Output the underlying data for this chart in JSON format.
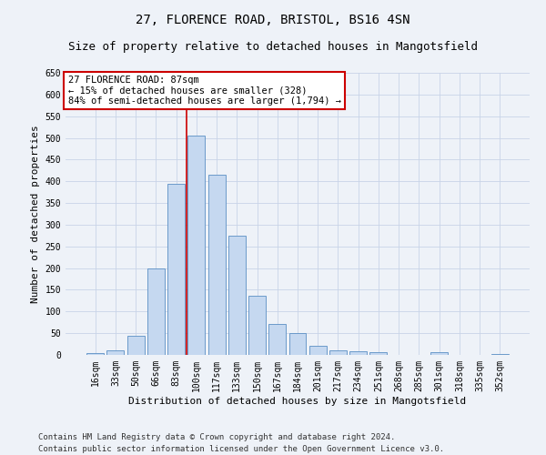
{
  "title_line1": "27, FLORENCE ROAD, BRISTOL, BS16 4SN",
  "title_line2": "Size of property relative to detached houses in Mangotsfield",
  "xlabel": "Distribution of detached houses by size in Mangotsfield",
  "ylabel": "Number of detached properties",
  "categories": [
    "16sqm",
    "33sqm",
    "50sqm",
    "66sqm",
    "83sqm",
    "100sqm",
    "117sqm",
    "133sqm",
    "150sqm",
    "167sqm",
    "184sqm",
    "201sqm",
    "217sqm",
    "234sqm",
    "251sqm",
    "268sqm",
    "285sqm",
    "301sqm",
    "318sqm",
    "335sqm",
    "352sqm"
  ],
  "bar_heights": [
    5,
    10,
    45,
    200,
    395,
    505,
    415,
    275,
    137,
    72,
    50,
    20,
    10,
    8,
    6,
    0,
    0,
    7,
    0,
    0,
    2
  ],
  "bar_color": "#c5d8f0",
  "bar_edge_color": "#5a8fc4",
  "vline_x": 4.5,
  "vline_color": "#cc0000",
  "annotation_text": "27 FLORENCE ROAD: 87sqm\n← 15% of detached houses are smaller (328)\n84% of semi-detached houses are larger (1,794) →",
  "annotation_box_color": "white",
  "annotation_box_edge": "#cc0000",
  "ylim": [
    0,
    650
  ],
  "yticks": [
    0,
    50,
    100,
    150,
    200,
    250,
    300,
    350,
    400,
    450,
    500,
    550,
    600,
    650
  ],
  "footnote_line1": "Contains HM Land Registry data © Crown copyright and database right 2024.",
  "footnote_line2": "Contains public sector information licensed under the Open Government Licence v3.0.",
  "bg_color": "#eef2f8",
  "grid_color": "#c8d4e8",
  "title_fontsize": 10,
  "subtitle_fontsize": 9,
  "tick_fontsize": 7,
  "label_fontsize": 8,
  "annotation_fontsize": 7.5,
  "footnote_fontsize": 6.5
}
